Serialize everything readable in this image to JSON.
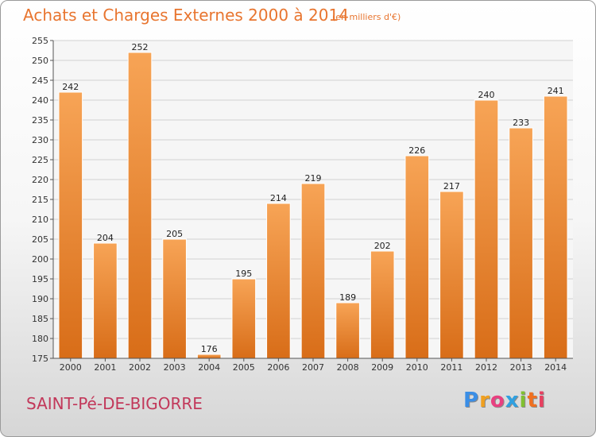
{
  "header": {
    "title": "Achats et Charges Externes 2000 à 2014",
    "subtitle": "(en milliers d'€)"
  },
  "footer": {
    "commune": "SAINT-Pé-DE-BIGORRE",
    "logo": [
      "P",
      "r",
      "o",
      "x",
      "i",
      "t",
      "i"
    ]
  },
  "colors": {
    "bar": "#f08a2e",
    "bar_light": "#f7a456",
    "bar_dark": "#d86d18",
    "title": "#e8752f",
    "commune": "#c2385a",
    "logo": [
      "#3a8ee6",
      "#f0a020",
      "#e84080",
      "#30a0e0",
      "#80c030",
      "#f07020",
      "#e84060"
    ]
  },
  "chart_data": {
    "type": "bar",
    "title": "Achats et Charges Externes 2000 à 2014",
    "subtitle": "(en milliers d'€)",
    "categories": [
      "2000",
      "2001",
      "2002",
      "2003",
      "2004",
      "2005",
      "2006",
      "2007",
      "2008",
      "2009",
      "2010",
      "2011",
      "2012",
      "2013",
      "2014"
    ],
    "values": [
      242,
      204,
      252,
      205,
      176,
      195,
      214,
      219,
      189,
      202,
      226,
      217,
      240,
      233,
      241
    ],
    "xlabel": "",
    "ylabel": "",
    "ylim": [
      175,
      255
    ],
    "yticks": [
      175,
      180,
      185,
      190,
      195,
      200,
      205,
      210,
      215,
      220,
      225,
      230,
      235,
      240,
      245,
      250,
      255
    ],
    "grid": true,
    "legend": "none"
  }
}
